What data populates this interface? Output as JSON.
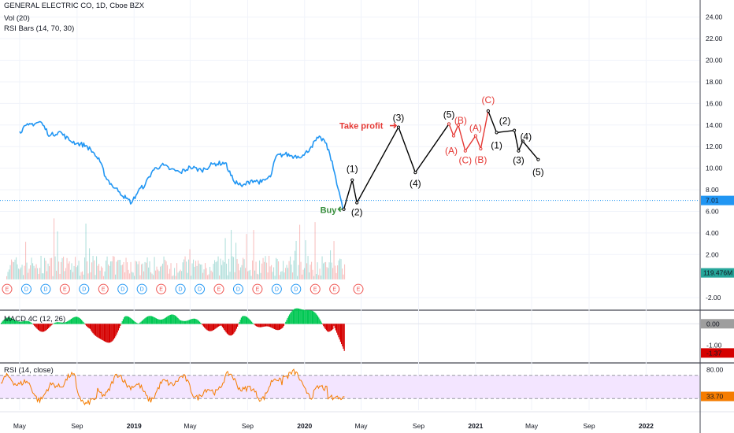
{
  "legend": {
    "title": "GENERAL ELECTRIC CO, 1D, Cboe BZX",
    "vol": "Vol (20)",
    "rsi_bars": "RSI Bars (14, 70, 30)",
    "macd": "MACD 4C (12, 26)",
    "rsi": "RSI (14, close)"
  },
  "colors": {
    "price_line": "#2196f3",
    "projection": "#000000",
    "correction": "#e53935",
    "buy": "#388e3c",
    "take_profit": "#e53935",
    "current_price_badge": "#2196f3",
    "macd_positive": "#00c853",
    "macd_negative": "#d50000",
    "rsi_line": "#f57c00",
    "rsi_band": "#f3e5ff"
  },
  "chart_data": [
    {
      "type": "line",
      "panel": "price",
      "y_ticks": [
        "24.00",
        "22.00",
        "20.00",
        "18.00",
        "16.00",
        "14.00",
        "12.00",
        "10.00",
        "8.00",
        "6.00",
        "4.00",
        "2.00",
        "-2.00"
      ],
      "ylim": [
        -2.5,
        25
      ],
      "x_ticks": [
        "May",
        "Sep",
        "2019",
        "May",
        "Sep",
        "2020",
        "May",
        "Sep",
        "2021",
        "May",
        "Sep",
        "2022"
      ],
      "last_price_label": "7.01",
      "volume_label": "119.476M",
      "price_series": [
        {
          "date": "2018-05-01",
          "value": 13.4
        },
        {
          "date": "2018-05-20",
          "value": 14.0
        },
        {
          "date": "2018-06-15",
          "value": 14.3
        },
        {
          "date": "2018-07-05",
          "value": 13.0
        },
        {
          "date": "2018-07-25",
          "value": 13.4
        },
        {
          "date": "2018-08-15",
          "value": 12.6
        },
        {
          "date": "2018-09-01",
          "value": 12.3
        },
        {
          "date": "2018-09-20",
          "value": 12.1
        },
        {
          "date": "2018-10-05",
          "value": 11.5
        },
        {
          "date": "2018-10-20",
          "value": 10.6
        },
        {
          "date": "2018-11-01",
          "value": 9.2
        },
        {
          "date": "2018-11-15",
          "value": 8.4
        },
        {
          "date": "2018-12-01",
          "value": 7.8
        },
        {
          "date": "2018-12-15",
          "value": 7.2
        },
        {
          "date": "2018-12-27",
          "value": 6.8
        },
        {
          "date": "2019-01-10",
          "value": 7.9
        },
        {
          "date": "2019-01-25",
          "value": 8.5
        },
        {
          "date": "2019-02-10",
          "value": 9.8
        },
        {
          "date": "2019-03-01",
          "value": 10.3
        },
        {
          "date": "2019-03-20",
          "value": 9.9
        },
        {
          "date": "2019-04-10",
          "value": 9.6
        },
        {
          "date": "2019-05-01",
          "value": 10.1
        },
        {
          "date": "2019-05-25",
          "value": 9.8
        },
        {
          "date": "2019-06-20",
          "value": 10.4
        },
        {
          "date": "2019-07-15",
          "value": 10.5
        },
        {
          "date": "2019-08-01",
          "value": 8.9
        },
        {
          "date": "2019-08-20",
          "value": 8.3
        },
        {
          "date": "2019-09-10",
          "value": 8.9
        },
        {
          "date": "2019-10-01",
          "value": 8.7
        },
        {
          "date": "2019-10-20",
          "value": 9.2
        },
        {
          "date": "2019-11-01",
          "value": 11.1
        },
        {
          "date": "2019-11-20",
          "value": 11.3
        },
        {
          "date": "2019-12-10",
          "value": 11.1
        },
        {
          "date": "2019-12-31",
          "value": 11.2
        },
        {
          "date": "2020-01-15",
          "value": 12.0
        },
        {
          "date": "2020-01-30",
          "value": 12.8
        },
        {
          "date": "2020-02-12",
          "value": 12.6
        },
        {
          "date": "2020-02-24",
          "value": 11.3
        },
        {
          "date": "2020-03-05",
          "value": 9.6
        },
        {
          "date": "2020-03-15",
          "value": 7.8
        },
        {
          "date": "2020-03-23",
          "value": 6.2
        }
      ],
      "impulse_wave": [
        {
          "date": "2020-03-25",
          "value": 6.2,
          "label": ""
        },
        {
          "date": "2020-04-12",
          "value": 8.9,
          "label": "(1)"
        },
        {
          "date": "2020-04-22",
          "value": 6.8,
          "label": "(2)"
        },
        {
          "date": "2020-07-20",
          "value": 13.8,
          "label": "(3)"
        },
        {
          "date": "2020-08-25",
          "value": 9.6,
          "label": "(4)"
        },
        {
          "date": "2020-11-05",
          "value": 14.1,
          "label": "(5)"
        }
      ],
      "correction_wave": [
        {
          "date": "2020-11-05",
          "value": 14.1,
          "label": ""
        },
        {
          "date": "2020-11-15",
          "value": 13.0,
          "label": "(A)"
        },
        {
          "date": "2020-11-25",
          "value": 14.0,
          "label": "(B)"
        },
        {
          "date": "2020-12-10",
          "value": 11.6,
          "label": "(C)"
        },
        {
          "date": "2021-01-01",
          "value": 13.0,
          "label": "(A)"
        },
        {
          "date": "2021-01-12",
          "value": 11.8,
          "label": "(B)"
        },
        {
          "date": "2021-01-28",
          "value": 15.3,
          "label": "(C)"
        }
      ],
      "decline_wave": [
        {
          "date": "2021-01-28",
          "value": 15.3,
          "label": ""
        },
        {
          "date": "2021-02-15",
          "value": 13.3,
          "label": "(1)"
        },
        {
          "date": "2021-03-25",
          "value": 13.5,
          "label": "(2)"
        },
        {
          "date": "2021-04-03",
          "value": 11.6,
          "label": "(3)"
        },
        {
          "date": "2021-04-12",
          "value": 12.5,
          "label": "(4)"
        },
        {
          "date": "2021-05-15",
          "value": 10.8,
          "label": "(5)"
        }
      ],
      "annotations": {
        "buy": "Buy",
        "take_profit": "Take profit"
      },
      "event_markers": [
        "E",
        "D",
        "D",
        "E",
        "D",
        "E",
        "D",
        "D",
        "E",
        "D",
        "D",
        "E",
        "D",
        "E",
        "D",
        "D",
        "E",
        "E",
        "E"
      ]
    },
    {
      "type": "bar",
      "panel": "macd",
      "y_ticks": [
        "0.00",
        "-1.00"
      ],
      "last_value_label": "-1.37",
      "ylim": [
        -1.8,
        0.6
      ]
    },
    {
      "type": "line",
      "panel": "rsi",
      "y_ticks": [
        "80.00"
      ],
      "band": [
        30,
        70
      ],
      "last_value_label": "33.70",
      "ylim": [
        10,
        90
      ]
    }
  ]
}
